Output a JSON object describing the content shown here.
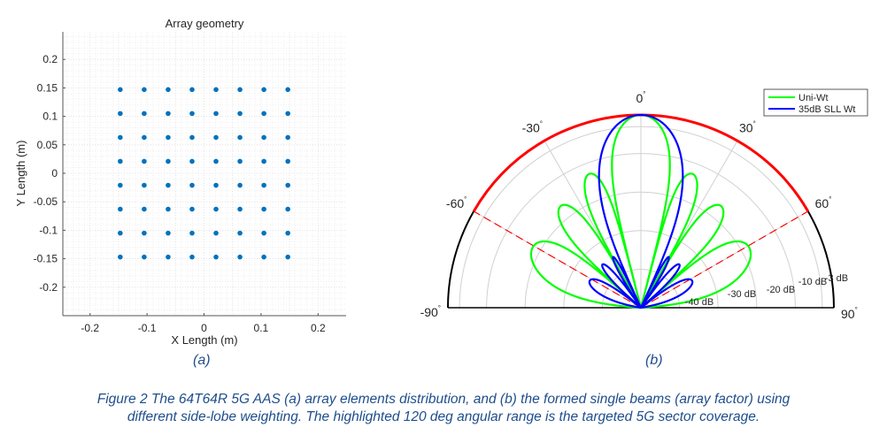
{
  "figure": {
    "caption_line1": "Figure 2 The 64T64R 5G AAS (a) array elements distribution, and (b) the formed single beams (array factor) using",
    "caption_line2": "different side-lobe weighting. The highlighted 120 deg angular range is the targeted 5G sector coverage.",
    "caption_color": "#1f4e8c",
    "panel_a_label": "(a)",
    "panel_b_label": "(b)"
  },
  "chart_data": [
    {
      "type": "scatter",
      "title": "Array geometry",
      "xlabel": "X Length (m)",
      "ylabel": "Y Length (m)",
      "xlim": [
        -0.25,
        0.25
      ],
      "ylim": [
        -0.25,
        0.25
      ],
      "xticks": [
        -0.2,
        -0.1,
        0,
        0.1,
        0.2
      ],
      "xtick_labels": [
        "-0.2",
        "-0.1",
        "0",
        "0.1",
        "0.2"
      ],
      "yticks": [
        0.2,
        0.15,
        0.1,
        0.05,
        0,
        -0.05,
        -0.1,
        -0.15,
        -0.2
      ],
      "ytick_labels": [
        "0.2",
        "0.15",
        "0.1",
        "0.05",
        "0",
        "-0.05",
        "-0.1",
        "-0.15",
        "-0.2"
      ],
      "grid": "major+minor dotted",
      "marker_color": "#0072bd",
      "element_grid": {
        "rows": 8,
        "cols": 8,
        "x": [
          -0.147,
          -0.105,
          -0.063,
          -0.021,
          0.021,
          0.063,
          0.105,
          0.147
        ],
        "y": [
          0.147,
          0.105,
          0.063,
          0.021,
          -0.021,
          -0.063,
          -0.105,
          -0.147
        ]
      }
    },
    {
      "type": "polar",
      "title": "",
      "theta_range_deg": [
        -90,
        90
      ],
      "theta_ticks_deg": [
        -90,
        -60,
        -30,
        0,
        30,
        60,
        90
      ],
      "theta_tick_labels": [
        "-90°",
        "-60°",
        "-30°",
        "0°",
        "30°",
        "60°",
        "90°"
      ],
      "r_unit": "dB",
      "r_range_db": [
        -50,
        0
      ],
      "r_rings_db": [
        -40,
        -30,
        -20,
        -10,
        -3
      ],
      "r_ring_labels": [
        "-40 dB",
        "-30 dB",
        "-20 dB",
        "-10 dB",
        "-3 dB"
      ],
      "highlight": {
        "range_deg": [
          -60,
          60
        ],
        "color": "#ff0000",
        "boundary_style": "dashed"
      },
      "legend": {
        "position": "northeast",
        "entries": [
          "Uni-Wt",
          "35dB SLL Wt"
        ]
      },
      "series": [
        {
          "name": "Uni-Wt",
          "color": "#00ff00",
          "elements": 8,
          "spacing_lambda": 0.5,
          "weighting": "uniform",
          "mainlobe_peak_db": 0,
          "sidelobe_peaks": [
            {
              "theta_deg": 21,
              "level_db": -13
            },
            {
              "theta_deg": 39,
              "level_db": -17.5
            },
            {
              "theta_deg": 63,
              "level_db": -20.5
            }
          ],
          "nulls_deg": [
            14.5,
            30,
            48.6,
            90
          ]
        },
        {
          "name": "35dB SLL Wt",
          "color": "#0000ff",
          "elements": 8,
          "spacing_lambda": 0.5,
          "weighting": "chebyshev",
          "sidelobe_level_db": -35,
          "mainlobe_peak_db": 0
        }
      ]
    }
  ]
}
